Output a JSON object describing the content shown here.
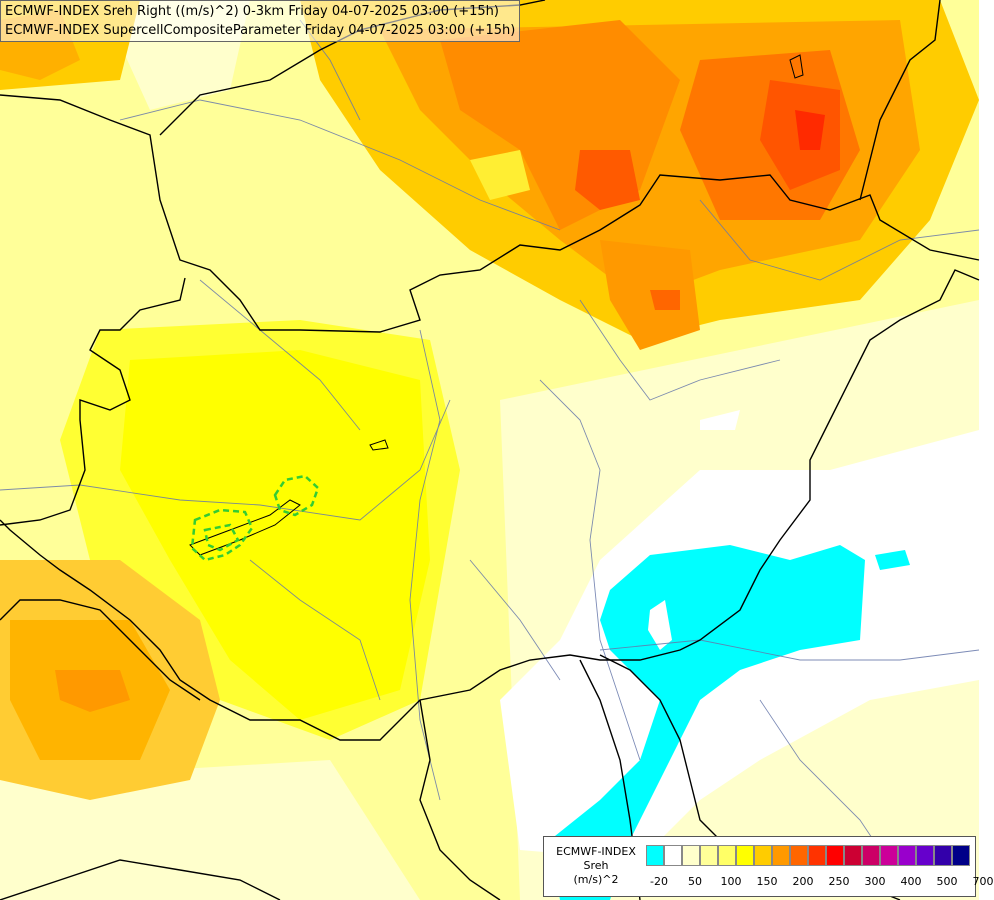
{
  "header": {
    "line1": "ECMWF-INDEX Sreh Right ((m/s)^2) 0-3km Friday 04-07-2025 03:00 (+15h)",
    "line2": "ECMWF-INDEX SupercellCompositeParameter Friday 04-07-2025 03:00 (+15h)"
  },
  "legend": {
    "title_line1": "ECMWF-INDEX",
    "title_line2": "Sreh",
    "title_line3": "(m/s)^2",
    "colors": [
      "#00ffff",
      "#ffffff",
      "#ffffcc",
      "#ffff99",
      "#ffff66",
      "#ffff00",
      "#ffcc00",
      "#ff9900",
      "#ff6600",
      "#ff3300",
      "#ff0000",
      "#cc0033",
      "#cc0066",
      "#cc0099",
      "#9900cc",
      "#6600cc",
      "#3300aa",
      "#000088"
    ],
    "ticks": [
      {
        "label": "-20",
        "at": 1
      },
      {
        "label": "50",
        "at": 3
      },
      {
        "label": "100",
        "at": 5
      },
      {
        "label": "150",
        "at": 7
      },
      {
        "label": "200",
        "at": 9
      },
      {
        "label": "250",
        "at": 11
      },
      {
        "label": "300",
        "at": 13
      },
      {
        "label": "400",
        "at": 15
      },
      {
        "label": "500",
        "at": 17
      },
      {
        "label": "700",
        "at": 19
      }
    ]
  }
}
